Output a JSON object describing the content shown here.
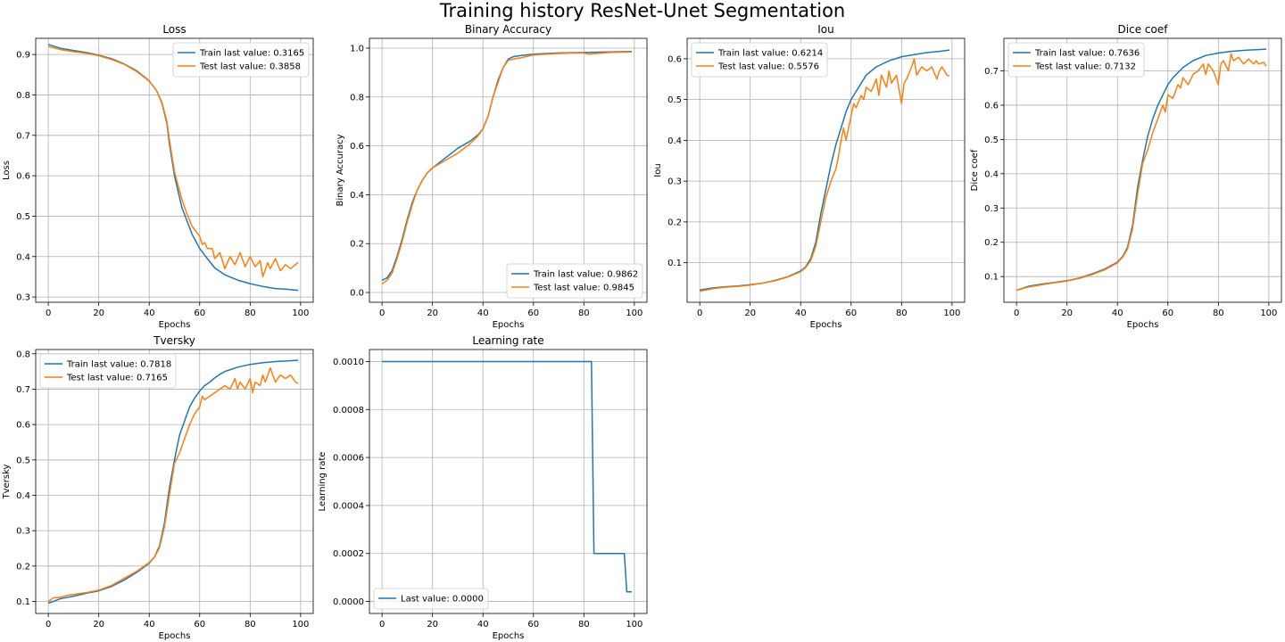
{
  "figure": {
    "suptitle": "Training history ResNet-Unet Segmentation"
  },
  "colors": {
    "train": "#1f77b4",
    "test": "#ff7f0e",
    "grid": "#b0b0b0",
    "axes": "#000000"
  },
  "chart_data": [
    {
      "type": "line",
      "title": "Loss",
      "xlabel": "Epochs",
      "ylabel": "Loss",
      "xlim": [
        -5,
        105
      ],
      "ylim": [
        0.287,
        0.94
      ],
      "xticks": [
        0,
        20,
        40,
        60,
        80,
        100
      ],
      "yticks": [
        0.3,
        0.4,
        0.5,
        0.6,
        0.7,
        0.8,
        0.9
      ],
      "tick_decimals": 1,
      "grid": true,
      "legend_loc": "top-right",
      "series": [
        {
          "name": "Train last value: 0.3165",
          "color": "#1f77b4",
          "x": [
            0,
            5,
            10,
            15,
            20,
            25,
            30,
            35,
            40,
            43,
            45,
            47,
            48,
            50,
            53,
            55,
            57,
            60,
            63,
            66,
            70,
            75,
            80,
            85,
            90,
            95,
            99
          ],
          "y": [
            0.925,
            0.915,
            0.91,
            0.905,
            0.898,
            0.89,
            0.877,
            0.86,
            0.835,
            0.81,
            0.78,
            0.73,
            0.68,
            0.6,
            0.52,
            0.488,
            0.455,
            0.42,
            0.395,
            0.372,
            0.355,
            0.342,
            0.333,
            0.326,
            0.321,
            0.319,
            0.3165
          ]
        },
        {
          "name": "Test last value: 0.3858",
          "color": "#ff7f0e",
          "x": [
            0,
            5,
            10,
            15,
            20,
            25,
            30,
            35,
            40,
            43,
            45,
            47,
            48,
            50,
            53,
            55,
            57,
            60,
            61,
            62,
            63,
            65,
            66,
            68,
            70,
            72,
            74,
            76,
            78,
            80,
            82,
            84,
            85,
            87,
            88,
            90,
            92,
            94,
            96,
            98,
            99
          ],
          "y": [
            0.92,
            0.912,
            0.907,
            0.903,
            0.897,
            0.888,
            0.876,
            0.858,
            0.834,
            0.81,
            0.782,
            0.735,
            0.69,
            0.61,
            0.54,
            0.505,
            0.475,
            0.45,
            0.43,
            0.435,
            0.42,
            0.42,
            0.395,
            0.41,
            0.37,
            0.4,
            0.38,
            0.41,
            0.375,
            0.4,
            0.375,
            0.39,
            0.35,
            0.385,
            0.37,
            0.395,
            0.365,
            0.38,
            0.37,
            0.38,
            0.3858
          ]
        }
      ]
    },
    {
      "type": "line",
      "title": "Binary Accuracy",
      "xlabel": "Epochs",
      "ylabel": "Binary Accuracy",
      "xlim": [
        -5,
        105
      ],
      "ylim": [
        -0.04,
        1.04
      ],
      "xticks": [
        0,
        20,
        40,
        60,
        80,
        100
      ],
      "yticks": [
        0.0,
        0.2,
        0.4,
        0.6,
        0.8,
        1.0
      ],
      "tick_decimals": 1,
      "grid": true,
      "legend_loc": "bottom-right",
      "series": [
        {
          "name": "Train last value: 0.9862",
          "color": "#1f77b4",
          "x": [
            0,
            2,
            4,
            6,
            8,
            10,
            12,
            14,
            16,
            18,
            20,
            25,
            30,
            35,
            38,
            40,
            42,
            44,
            46,
            48,
            50,
            52,
            55,
            60,
            70,
            80,
            90,
            99
          ],
          "y": [
            0.05,
            0.06,
            0.09,
            0.15,
            0.22,
            0.3,
            0.37,
            0.42,
            0.46,
            0.49,
            0.51,
            0.55,
            0.59,
            0.62,
            0.645,
            0.67,
            0.72,
            0.8,
            0.87,
            0.92,
            0.955,
            0.965,
            0.97,
            0.975,
            0.98,
            0.982,
            0.984,
            0.9862
          ]
        },
        {
          "name": "Test last value: 0.9845",
          "color": "#ff7f0e",
          "x": [
            0,
            2,
            4,
            6,
            8,
            10,
            12,
            14,
            16,
            18,
            20,
            25,
            30,
            35,
            38,
            40,
            42,
            44,
            46,
            48,
            50,
            52,
            55,
            60,
            70,
            80,
            82,
            90,
            99
          ],
          "y": [
            0.035,
            0.05,
            0.08,
            0.14,
            0.21,
            0.29,
            0.36,
            0.42,
            0.46,
            0.49,
            0.51,
            0.54,
            0.57,
            0.61,
            0.64,
            0.67,
            0.72,
            0.8,
            0.86,
            0.92,
            0.95,
            0.955,
            0.96,
            0.972,
            0.978,
            0.98,
            0.975,
            0.982,
            0.9845
          ]
        }
      ]
    },
    {
      "type": "line",
      "title": "Iou",
      "xlabel": "Epochs",
      "ylabel": "Iou",
      "xlim": [
        -5,
        105
      ],
      "ylim": [
        0.003,
        0.65
      ],
      "xticks": [
        0,
        20,
        40,
        60,
        80,
        100
      ],
      "yticks": [
        0.1,
        0.2,
        0.3,
        0.4,
        0.5,
        0.6
      ],
      "tick_decimals": 1,
      "grid": true,
      "legend_loc": "top-left",
      "series": [
        {
          "name": "Train last value: 0.6214",
          "color": "#1f77b4",
          "x": [
            0,
            5,
            10,
            15,
            20,
            25,
            30,
            35,
            40,
            42,
            44,
            46,
            48,
            50,
            52,
            54,
            56,
            58,
            60,
            62,
            64,
            66,
            68,
            70,
            75,
            80,
            85,
            90,
            95,
            99
          ],
          "y": [
            0.033,
            0.038,
            0.041,
            0.043,
            0.046,
            0.05,
            0.057,
            0.066,
            0.08,
            0.09,
            0.11,
            0.15,
            0.22,
            0.28,
            0.34,
            0.39,
            0.43,
            0.47,
            0.5,
            0.52,
            0.54,
            0.56,
            0.57,
            0.58,
            0.595,
            0.605,
            0.61,
            0.615,
            0.618,
            0.6214
          ]
        },
        {
          "name": "Test last value: 0.5576",
          "color": "#ff7f0e",
          "x": [
            0,
            5,
            10,
            15,
            20,
            25,
            30,
            35,
            40,
            42,
            44,
            46,
            48,
            50,
            52,
            54,
            55,
            56,
            57,
            58,
            60,
            61,
            62,
            64,
            65,
            66,
            68,
            70,
            71,
            72,
            74,
            75,
            76,
            78,
            80,
            81,
            82,
            84,
            85,
            86,
            88,
            90,
            92,
            94,
            95,
            96,
            98,
            99
          ],
          "y": [
            0.03,
            0.036,
            0.04,
            0.042,
            0.045,
            0.05,
            0.056,
            0.065,
            0.078,
            0.088,
            0.105,
            0.14,
            0.2,
            0.26,
            0.3,
            0.33,
            0.36,
            0.4,
            0.43,
            0.4,
            0.46,
            0.49,
            0.48,
            0.51,
            0.5,
            0.53,
            0.52,
            0.55,
            0.51,
            0.56,
            0.53,
            0.57,
            0.54,
            0.56,
            0.49,
            0.54,
            0.55,
            0.58,
            0.6,
            0.56,
            0.58,
            0.57,
            0.58,
            0.55,
            0.57,
            0.58,
            0.56,
            0.5576
          ]
        }
      ]
    },
    {
      "type": "line",
      "title": "Dice coef",
      "xlabel": "Epochs",
      "ylabel": "Dice coef",
      "xlim": [
        -5,
        105
      ],
      "ylim": [
        0.025,
        0.795
      ],
      "xticks": [
        0,
        20,
        40,
        60,
        80,
        100
      ],
      "yticks": [
        0.1,
        0.2,
        0.3,
        0.4,
        0.5,
        0.6,
        0.7
      ],
      "tick_decimals": 1,
      "grid": true,
      "legend_loc": "top-left",
      "series": [
        {
          "name": "Train last value: 0.7636",
          "color": "#1f77b4",
          "x": [
            0,
            5,
            10,
            15,
            20,
            25,
            30,
            35,
            40,
            42,
            44,
            46,
            48,
            50,
            52,
            54,
            56,
            58,
            60,
            62,
            64,
            66,
            68,
            70,
            75,
            80,
            85,
            90,
            95,
            99
          ],
          "y": [
            0.06,
            0.072,
            0.078,
            0.083,
            0.088,
            0.096,
            0.108,
            0.122,
            0.142,
            0.158,
            0.185,
            0.25,
            0.36,
            0.44,
            0.51,
            0.56,
            0.6,
            0.63,
            0.66,
            0.68,
            0.695,
            0.71,
            0.72,
            0.73,
            0.745,
            0.752,
            0.757,
            0.76,
            0.762,
            0.7636
          ]
        },
        {
          "name": "Test last value: 0.7132",
          "color": "#ff7f0e",
          "x": [
            0,
            5,
            10,
            15,
            20,
            25,
            30,
            35,
            40,
            42,
            44,
            46,
            48,
            50,
            52,
            54,
            56,
            58,
            59,
            60,
            62,
            64,
            65,
            66,
            68,
            70,
            72,
            74,
            75,
            76,
            78,
            80,
            81,
            82,
            84,
            85,
            86,
            88,
            90,
            92,
            94,
            95,
            96,
            98,
            99
          ],
          "y": [
            0.06,
            0.07,
            0.076,
            0.082,
            0.087,
            0.095,
            0.106,
            0.12,
            0.14,
            0.156,
            0.18,
            0.24,
            0.34,
            0.43,
            0.47,
            0.52,
            0.56,
            0.6,
            0.58,
            0.63,
            0.62,
            0.66,
            0.65,
            0.68,
            0.66,
            0.69,
            0.7,
            0.72,
            0.69,
            0.72,
            0.7,
            0.66,
            0.72,
            0.73,
            0.7,
            0.75,
            0.73,
            0.74,
            0.72,
            0.735,
            0.72,
            0.73,
            0.72,
            0.725,
            0.7132
          ]
        }
      ]
    },
    {
      "type": "line",
      "title": "Tversky",
      "xlabel": "Epochs",
      "ylabel": "Tversky",
      "xlim": [
        -5,
        105
      ],
      "ylim": [
        0.066,
        0.812
      ],
      "xticks": [
        0,
        20,
        40,
        60,
        80,
        100
      ],
      "yticks": [
        0.1,
        0.2,
        0.3,
        0.4,
        0.5,
        0.6,
        0.7,
        0.8
      ],
      "tick_decimals": 1,
      "grid": true,
      "legend_loc": "top-left",
      "series": [
        {
          "name": "Train last value: 0.7818",
          "color": "#1f77b4",
          "x": [
            0,
            5,
            10,
            15,
            20,
            25,
            30,
            35,
            40,
            42,
            44,
            46,
            48,
            50,
            52,
            54,
            56,
            58,
            60,
            62,
            64,
            66,
            68,
            70,
            75,
            80,
            85,
            90,
            95,
            99
          ],
          "y": [
            0.095,
            0.108,
            0.115,
            0.123,
            0.13,
            0.142,
            0.16,
            0.182,
            0.208,
            0.225,
            0.255,
            0.32,
            0.42,
            0.5,
            0.57,
            0.61,
            0.65,
            0.675,
            0.695,
            0.71,
            0.72,
            0.732,
            0.742,
            0.75,
            0.762,
            0.77,
            0.775,
            0.778,
            0.78,
            0.7818
          ]
        },
        {
          "name": "Test last value: 0.7165",
          "color": "#ff7f0e",
          "x": [
            0,
            2,
            5,
            8,
            10,
            15,
            20,
            25,
            30,
            35,
            40,
            42,
            44,
            46,
            48,
            50,
            52,
            54,
            56,
            58,
            60,
            61,
            62,
            64,
            66,
            68,
            70,
            72,
            74,
            75,
            76,
            78,
            80,
            81,
            82,
            84,
            85,
            86,
            88,
            90,
            92,
            94,
            96,
            98,
            99
          ],
          "y": [
            0.1,
            0.11,
            0.112,
            0.118,
            0.12,
            0.125,
            0.132,
            0.145,
            0.165,
            0.185,
            0.21,
            0.225,
            0.25,
            0.31,
            0.4,
            0.49,
            0.52,
            0.56,
            0.6,
            0.63,
            0.65,
            0.68,
            0.67,
            0.68,
            0.69,
            0.7,
            0.71,
            0.7,
            0.73,
            0.7,
            0.72,
            0.7,
            0.73,
            0.69,
            0.72,
            0.71,
            0.74,
            0.72,
            0.76,
            0.72,
            0.74,
            0.73,
            0.74,
            0.72,
            0.7165
          ]
        }
      ]
    },
    {
      "type": "line",
      "title": "Learning rate",
      "xlabel": "Epochs",
      "ylabel": "Learning rate",
      "xlim": [
        -5,
        105
      ],
      "ylim": [
        -5e-05,
        0.00105
      ],
      "xticks": [
        0,
        20,
        40,
        60,
        80,
        100
      ],
      "yticks": [
        0.0,
        0.0002,
        0.0004,
        0.0006,
        0.0008,
        0.001
      ],
      "tick_decimals": 4,
      "grid": true,
      "legend_loc": "bottom-left",
      "series": [
        {
          "name": "Last value: 0.0000",
          "color": "#1f77b4",
          "x": [
            0,
            83,
            84,
            96,
            97,
            99
          ],
          "y": [
            0.001,
            0.001,
            0.0002,
            0.0002,
            4e-05,
            4e-05
          ]
        }
      ]
    }
  ]
}
